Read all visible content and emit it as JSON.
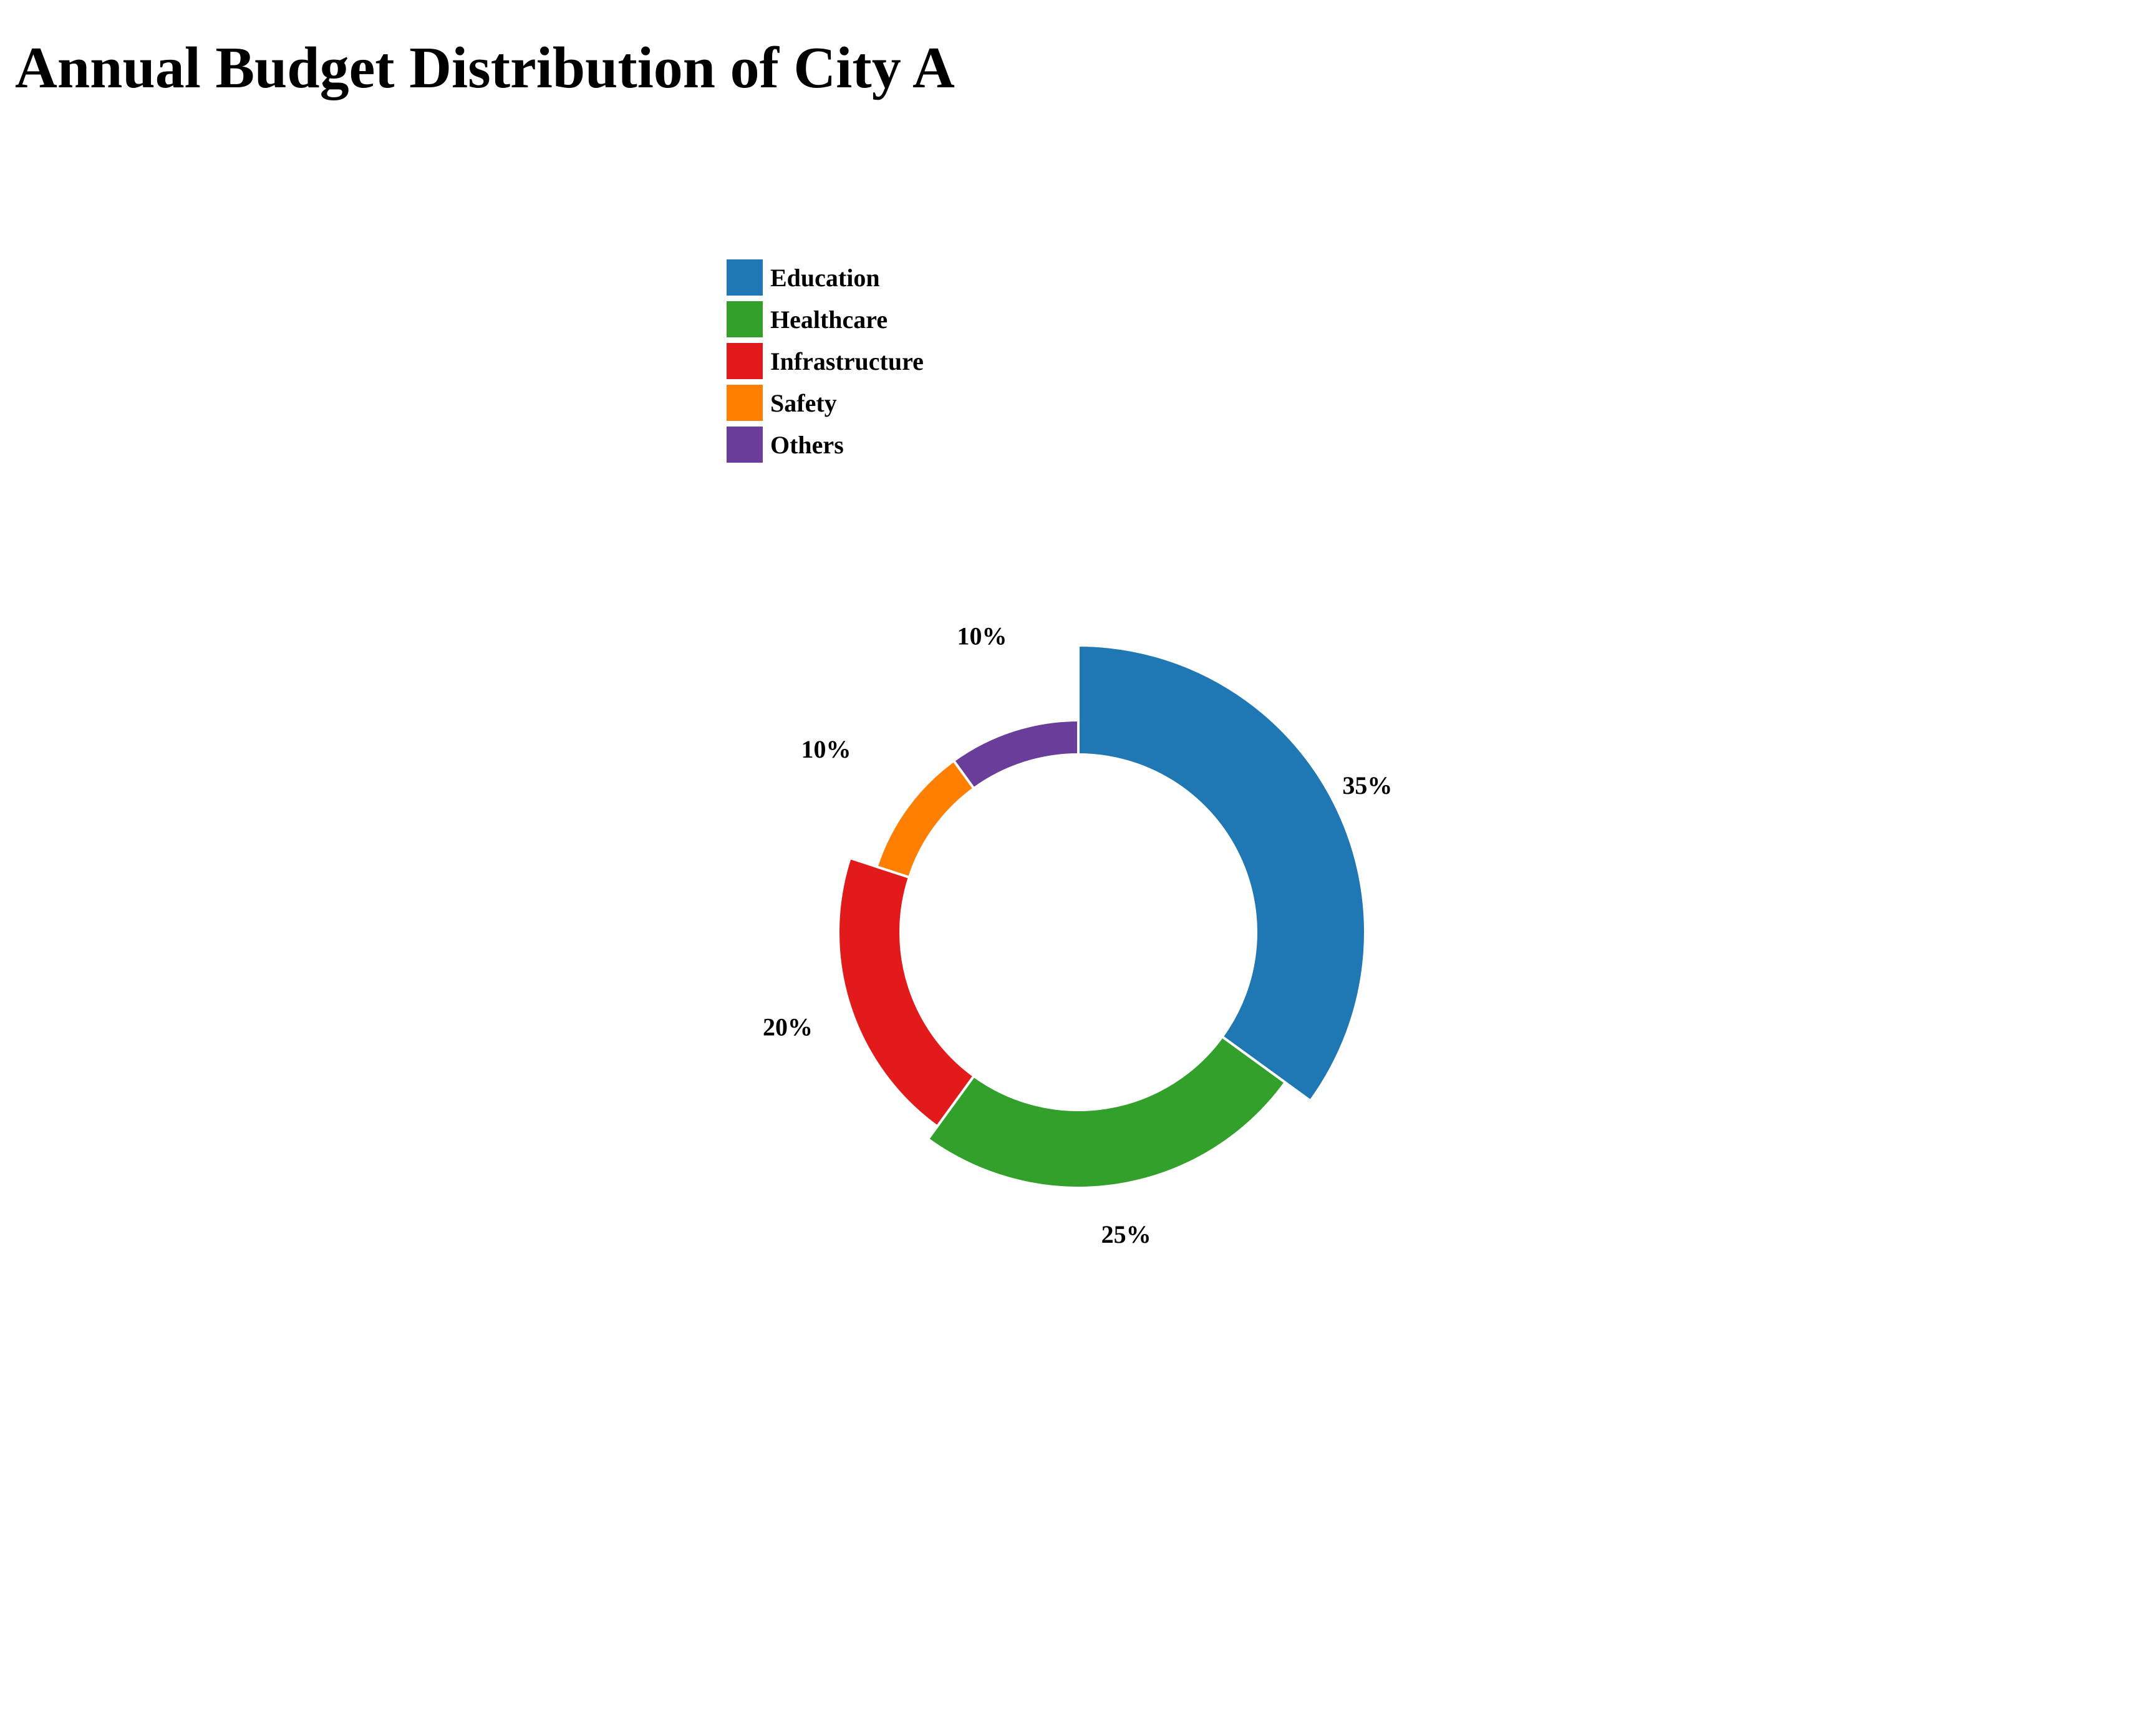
{
  "chart_data": {
    "type": "pie",
    "title": "Annual Budget Distribution of City A",
    "style": "donut",
    "categories": [
      "Education",
      "Healthcare",
      "Infrastructure",
      "Safety",
      "Others"
    ],
    "values": [
      35,
      25,
      20,
      10,
      10
    ],
    "labels": [
      "35%",
      "25%",
      "20%",
      "10%",
      "10%"
    ],
    "colors": [
      "#1f77b4",
      "#33a02c",
      "#e31a1c",
      "#ff7f00",
      "#6a3d9a"
    ],
    "legend": {
      "position": "top",
      "entries": [
        "Education",
        "Healthcare",
        "Infrastructure",
        "Safety",
        "Others"
      ]
    },
    "grid": false
  }
}
